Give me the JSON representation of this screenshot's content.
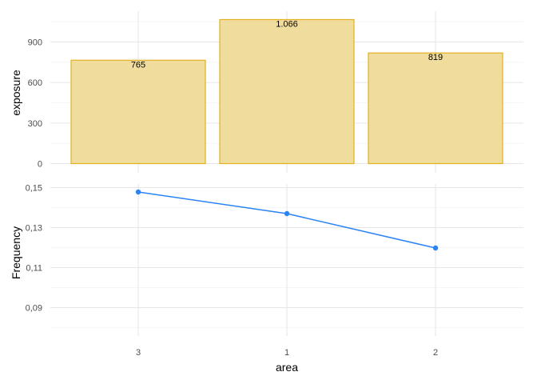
{
  "chart_data": [
    {
      "type": "bar",
      "categories": [
        "3",
        "1",
        "2"
      ],
      "values": [
        765,
        1066,
        819
      ],
      "data_labels": [
        "765",
        "1.066",
        "819"
      ],
      "ylabel": "exposure",
      "ylim": [
        0,
        1100
      ],
      "y_ticks": [
        0,
        300,
        600,
        900
      ],
      "y_tick_labels": [
        "0",
        "300",
        "600",
        "900"
      ],
      "bar_fill": "#f0dc9c",
      "bar_stroke": "#e3b020",
      "grid": true
    },
    {
      "type": "line",
      "categories": [
        "3",
        "1",
        "2"
      ],
      "values": [
        0.1478,
        0.137,
        0.1198
      ],
      "xlabel": "area",
      "ylabel": "Frequency",
      "ylim": [
        0.0735,
        0.152
      ],
      "y_ticks": [
        0.09,
        0.11,
        0.13,
        0.15
      ],
      "y_tick_labels": [
        "0,09",
        "0,11",
        "0,13",
        "0,15"
      ],
      "x_tick_labels": [
        "3",
        "1",
        "2"
      ],
      "line_color": "#2b83f6",
      "grid": true
    }
  ]
}
